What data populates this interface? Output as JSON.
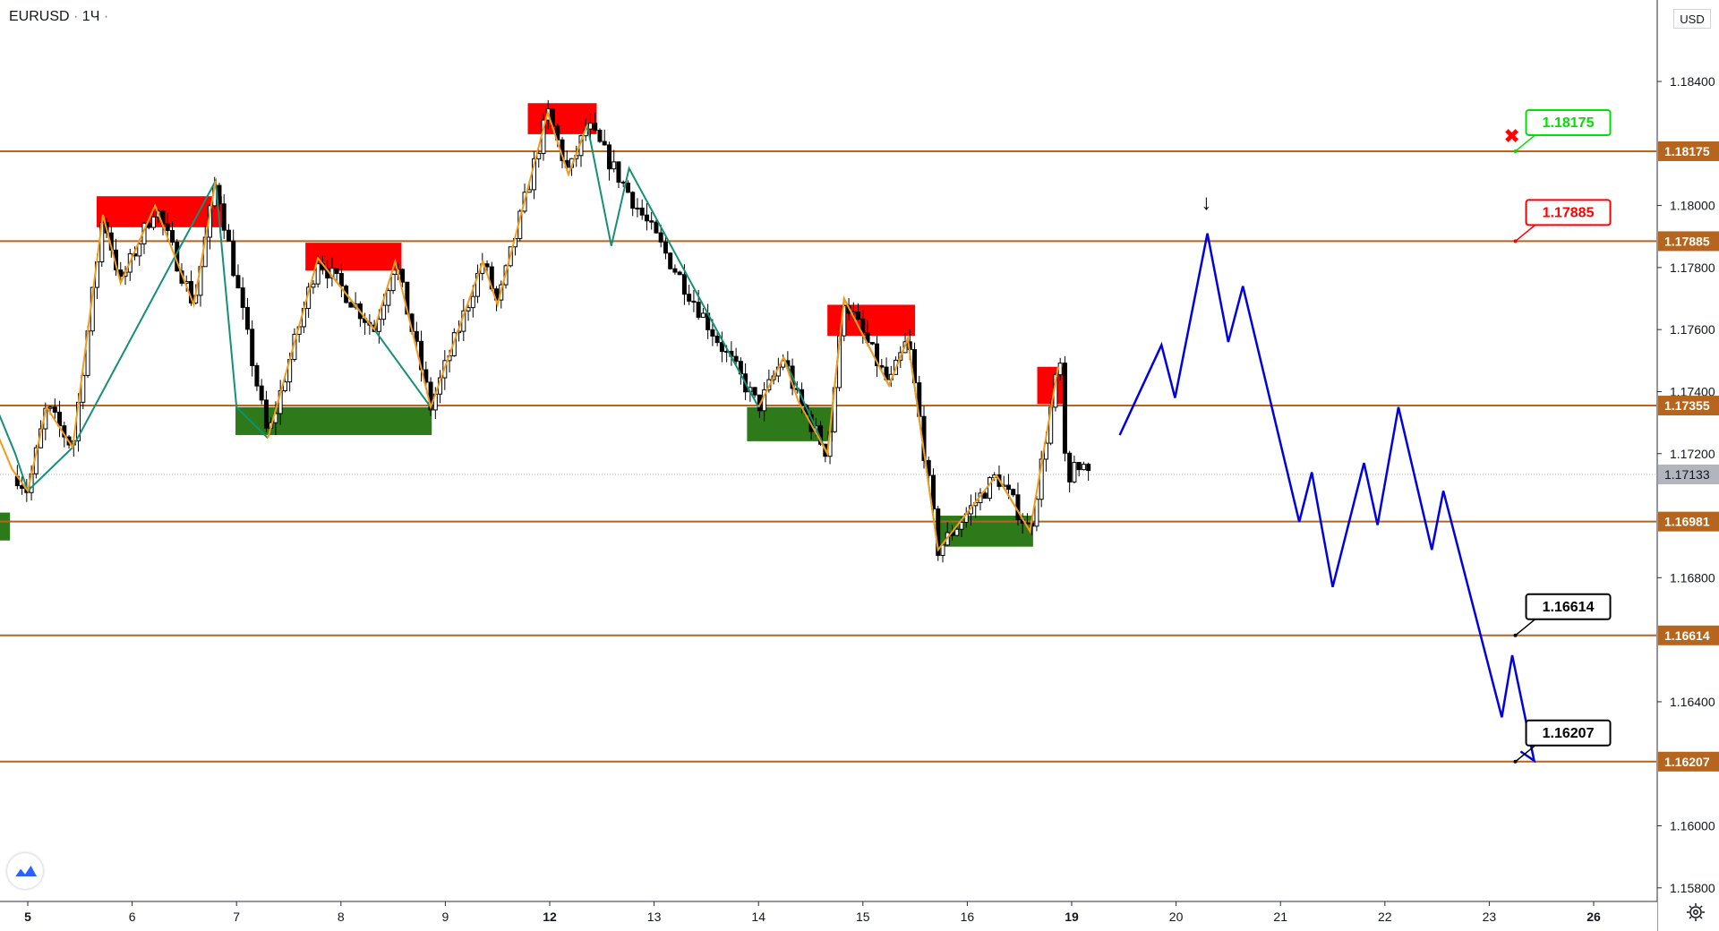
{
  "header": {
    "symbol": "EURUSD",
    "separator": "·",
    "interval": "1Ч",
    "dot": "·"
  },
  "currency_button": "USD",
  "chart_data": {
    "type": "candlestick",
    "symbol": "EURUSD",
    "timeframe": "1Ч",
    "ylim": [
      1.1578,
      1.1866
    ],
    "y_ticks": [
      "1.18400",
      "1.18000",
      "1.17800",
      "1.17600",
      "1.17400",
      "1.17200",
      "1.16800",
      "1.16400",
      "1.16000",
      "1.15800"
    ],
    "x_ticks": [
      {
        "label": "5",
        "t": 0.0,
        "bold": true
      },
      {
        "label": "6",
        "t": 1.0
      },
      {
        "label": "7",
        "t": 2.0
      },
      {
        "label": "8",
        "t": 3.0
      },
      {
        "label": "9",
        "t": 4.0
      },
      {
        "label": "12",
        "t": 5.0,
        "bold": true
      },
      {
        "label": "13",
        "t": 6.0
      },
      {
        "label": "14",
        "t": 7.0
      },
      {
        "label": "15",
        "t": 8.0
      },
      {
        "label": "16",
        "t": 9.0
      },
      {
        "label": "19",
        "t": 10.0,
        "bold": true
      },
      {
        "label": "20",
        "t": 11.0
      },
      {
        "label": "21",
        "t": 12.0
      },
      {
        "label": "22",
        "t": 13.0
      },
      {
        "label": "23",
        "t": 14.0
      },
      {
        "label": "26",
        "t": 15.0,
        "bold": true
      }
    ],
    "levels": [
      {
        "value": 1.18175,
        "label": "1.18175"
      },
      {
        "value": 1.17885,
        "label": "1.17885"
      },
      {
        "value": 1.17355,
        "label": "1.17355"
      },
      {
        "value": 1.16981,
        "label": "1.16981"
      },
      {
        "value": 1.16614,
        "label": "1.16614"
      },
      {
        "value": 1.16207,
        "label": "1.16207"
      }
    ],
    "current_price": {
      "value": 1.17133,
      "label": "1.17133"
    },
    "targets": [
      {
        "value": 1.18175,
        "label": "1.18175",
        "color": "#00e000",
        "t": 14.25
      },
      {
        "value": 1.17885,
        "label": "1.17885",
        "color": "#ff0000",
        "t": 14.25
      },
      {
        "value": 1.16614,
        "label": "1.16614",
        "color": "#000000",
        "t": 14.25
      },
      {
        "value": 1.16207,
        "label": "1.16207",
        "color": "#000000",
        "t": 14.25
      }
    ],
    "supply_zones": [
      {
        "t0": 0.66,
        "t1": 1.86,
        "top": 1.1803,
        "bottom": 1.1793
      },
      {
        "t0": 2.66,
        "t1": 3.58,
        "top": 1.1788,
        "bottom": 1.1779
      },
      {
        "t0": 4.79,
        "t1": 5.45,
        "top": 1.1833,
        "bottom": 1.1823
      },
      {
        "t0": 7.66,
        "t1": 8.5,
        "top": 1.1768,
        "bottom": 1.1758
      },
      {
        "t0": 9.67,
        "t1": 9.92,
        "top": 1.1748,
        "bottom": 1.1736
      }
    ],
    "demand_zones": [
      {
        "t0": -0.5,
        "t1": -0.17,
        "top": 1.1701,
        "bottom": 1.1692
      },
      {
        "t0": 1.99,
        "t1": 3.87,
        "top": 1.1735,
        "bottom": 1.1726
      },
      {
        "t0": 6.89,
        "t1": 7.71,
        "top": 1.1735,
        "bottom": 1.1724
      },
      {
        "t0": 8.72,
        "t1": 9.63,
        "top": 1.17,
        "bottom": 1.169
      }
    ],
    "orange_legs": [
      [
        [
          -0.4,
          1.1735
        ],
        [
          -0.15,
          1.1715
        ],
        [
          0.0,
          1.1708
        ],
        [
          0.18,
          1.1735
        ],
        [
          0.43,
          1.1722
        ],
        [
          0.72,
          1.1797
        ],
        [
          0.89,
          1.1775
        ],
        [
          1.22,
          1.18
        ],
        [
          1.59,
          1.1768
        ],
        [
          1.8,
          1.1808
        ]
      ],
      [
        [
          2.3,
          1.1725
        ],
        [
          2.78,
          1.1783
        ],
        [
          3.32,
          1.176
        ],
        [
          3.52,
          1.1782
        ],
        [
          3.86,
          1.1735
        ],
        [
          4.36,
          1.1782
        ],
        [
          4.5,
          1.1768
        ],
        [
          4.98,
          1.183
        ],
        [
          5.18,
          1.181
        ],
        [
          5.36,
          1.1826
        ]
      ],
      [
        [
          7.0,
          1.1735
        ],
        [
          7.24,
          1.1751
        ],
        [
          7.38,
          1.1737
        ],
        [
          7.66,
          1.172
        ],
        [
          7.82,
          1.177
        ],
        [
          8.25,
          1.1742
        ],
        [
          8.43,
          1.1757
        ],
        [
          8.72,
          1.1689
        ],
        [
          9.28,
          1.1713
        ],
        [
          9.6,
          1.1695
        ],
        [
          9.87,
          1.1748
        ]
      ]
    ],
    "teal_legs": [
      [
        [
          -0.4,
          1.1743
        ],
        [
          -0.12,
          1.172
        ],
        [
          0.0,
          1.1708
        ],
        [
          0.43,
          1.1722
        ],
        [
          1.8,
          1.1808
        ],
        [
          2.0,
          1.1735
        ],
        [
          2.3,
          1.1725
        ]
      ],
      [
        [
          2.78,
          1.1783
        ],
        [
          3.32,
          1.176
        ],
        [
          3.86,
          1.1735
        ]
      ],
      [
        [
          5.18,
          1.181
        ],
        [
          5.36,
          1.1826
        ],
        [
          5.59,
          1.1787
        ],
        [
          5.76,
          1.1812
        ],
        [
          7.0,
          1.1735
        ]
      ],
      [
        [
          7.24,
          1.1751
        ],
        [
          7.66,
          1.172
        ],
        [
          7.82,
          1.177
        ],
        [
          8.25,
          1.1742
        ],
        [
          8.43,
          1.1757
        ],
        [
          8.72,
          1.1689
        ]
      ],
      [
        [
          9.28,
          1.1713
        ],
        [
          9.6,
          1.1695
        ]
      ]
    ],
    "forecast": {
      "color": "#0000e0",
      "points": [
        [
          10.46,
          1.1726
        ],
        [
          10.86,
          1.1755
        ],
        [
          10.99,
          1.1738
        ],
        [
          11.3,
          1.1791
        ],
        [
          11.5,
          1.1756
        ],
        [
          11.64,
          1.1774
        ],
        [
          12.18,
          1.1698
        ],
        [
          12.3,
          1.1714
        ],
        [
          12.5,
          1.1677
        ],
        [
          12.8,
          1.1717
        ],
        [
          12.93,
          1.1697
        ],
        [
          13.13,
          1.1735
        ],
        [
          13.45,
          1.1689
        ],
        [
          13.56,
          1.1708
        ],
        [
          14.12,
          1.1635
        ],
        [
          14.22,
          1.1655
        ],
        [
          14.43,
          1.1621
        ],
        [
          14.3,
          1.1624
        ]
      ]
    },
    "stop_marker": {
      "t": 14.43,
      "value": 1.1822,
      "symbol": "✖",
      "color": "#ff0000"
    },
    "entry_arrow": {
      "t": 11.29,
      "value": 1.1801,
      "symbol": "↓"
    },
    "grid": false,
    "axis_side": "right"
  }
}
